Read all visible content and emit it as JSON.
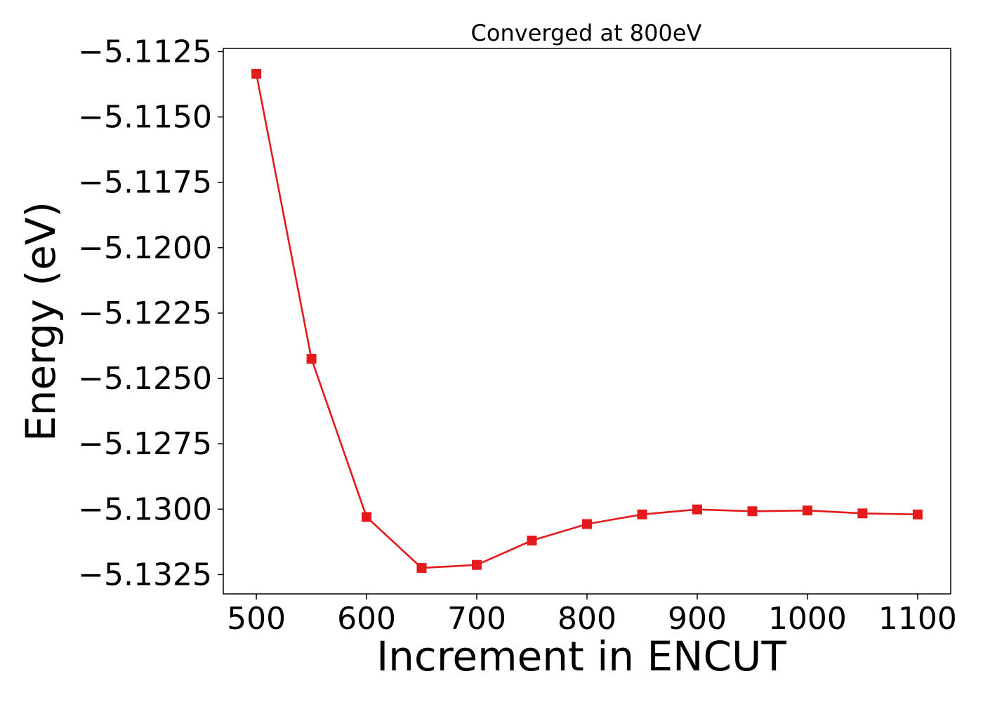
{
  "chart_data": {
    "type": "line",
    "title": "Converged at 800eV",
    "xlabel": "Increment in ENCUT",
    "ylabel": "Energy (eV)",
    "x": [
      500,
      550,
      600,
      650,
      700,
      750,
      800,
      850,
      900,
      950,
      1000,
      1050,
      1100
    ],
    "series": [
      {
        "values": [
          -5.11335,
          -5.12425,
          -5.1303,
          -5.13225,
          -5.13213,
          -5.1312,
          -5.13057,
          -5.1302,
          -5.13001,
          -5.13008,
          -5.13005,
          -5.13016,
          -5.1302
        ]
      }
    ],
    "xlim": [
      470,
      1130
    ],
    "ylim": [
      -5.13324,
      -5.11238
    ],
    "xticks": [
      500,
      600,
      700,
      800,
      900,
      1000,
      1100
    ],
    "xtick_labels": [
      "500",
      "600",
      "700",
      "800",
      "900",
      "1000",
      "1100"
    ],
    "yticks": [
      -5.1125,
      -5.115,
      -5.1175,
      -5.12,
      -5.1225,
      -5.125,
      -5.1275,
      -5.13,
      -5.1325
    ],
    "ytick_labels": [
      "−5.1125",
      "−5.1150",
      "−5.1175",
      "−5.1200",
      "−5.1225",
      "−5.1250",
      "−5.1275",
      "−5.1300",
      "−5.1325"
    ],
    "grid": false,
    "color": "#e41a1c",
    "marker": "square"
  }
}
